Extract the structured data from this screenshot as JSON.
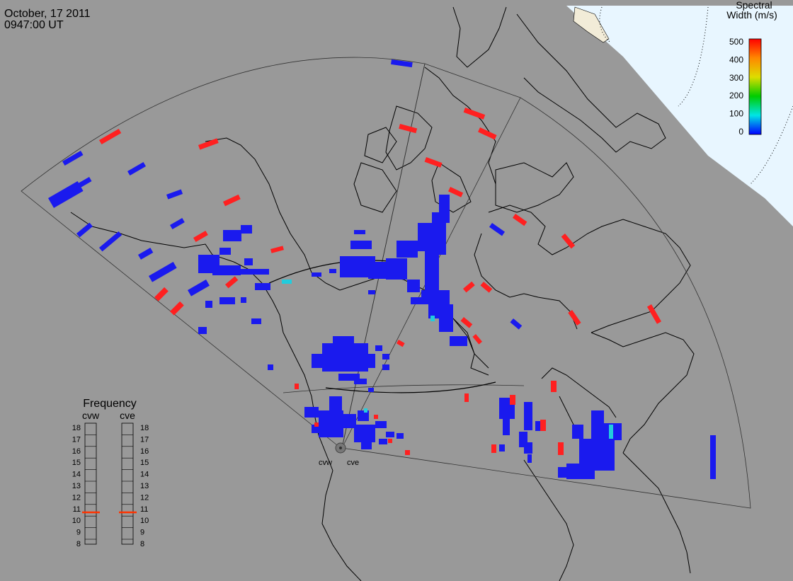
{
  "header": {
    "date": "October, 17 2011",
    "time": "0947:00 UT"
  },
  "colorbar": {
    "title_line1": "Spectral",
    "title_line2": "Width (m/s)",
    "ticks": [
      "500",
      "400",
      "300",
      "200",
      "100",
      "0"
    ]
  },
  "radars": {
    "west": "cvw",
    "east": "cve"
  },
  "frequency": {
    "title": "Frequency",
    "col_west": "cvw",
    "col_east": "cve",
    "ticks": [
      "18",
      "17",
      "16",
      "15",
      "14",
      "13",
      "12",
      "11",
      "10",
      "9",
      "8"
    ],
    "west_value_mhz": 10.7,
    "east_value_mhz": 10.7
  },
  "colors": {
    "background": "#999999",
    "ocean": "#e8f6ff",
    "low_width": "#1a1aee",
    "cyan": "#22ccdd",
    "high_width": "#ff2020"
  }
}
